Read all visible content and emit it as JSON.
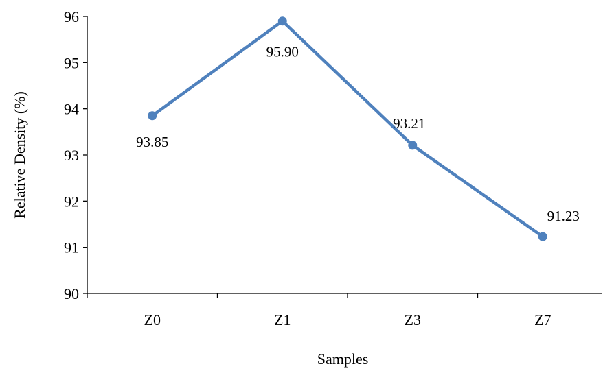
{
  "chart_data": {
    "type": "line",
    "categories": [
      "Z0",
      "Z1",
      "Z3",
      "Z7"
    ],
    "series": [
      {
        "values": [
          93.85,
          95.9,
          93.21,
          91.23
        ]
      }
    ],
    "data_labels": [
      "93.85",
      "95.90",
      "93.21",
      "91.23"
    ],
    "xlabel": "Samples",
    "ylabel": "Relative Density (%)",
    "ylim": [
      90,
      96
    ],
    "yticks": [
      90,
      91,
      92,
      93,
      94,
      95,
      96
    ],
    "grid": false,
    "legend": "none",
    "colors": {
      "series": "#4F81BD",
      "axis": "#000000"
    }
  }
}
